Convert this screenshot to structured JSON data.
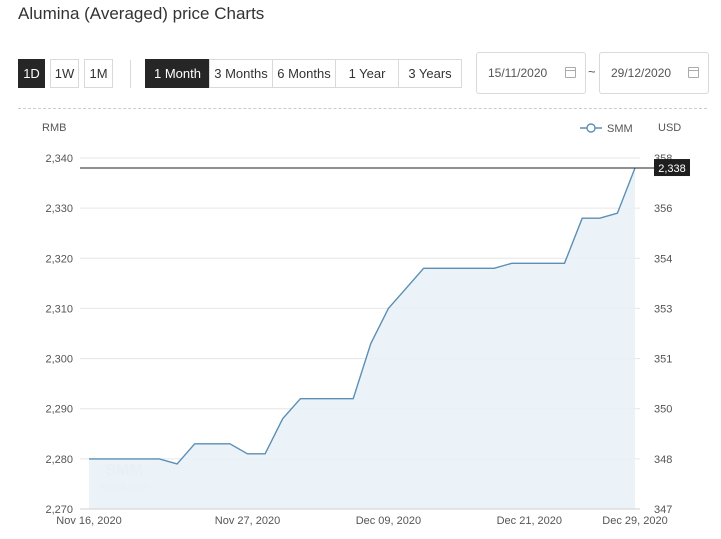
{
  "title": "Alumina (Averaged) price Charts",
  "interval_buttons": [
    {
      "label": "1D",
      "active": true
    },
    {
      "label": "1W",
      "active": false
    },
    {
      "label": "1M",
      "active": false
    }
  ],
  "range_buttons": [
    {
      "label": "1 Month",
      "active": true
    },
    {
      "label": "3 Months",
      "active": false
    },
    {
      "label": "6 Months",
      "active": false
    },
    {
      "label": "1 Year",
      "active": false
    },
    {
      "label": "3 Years",
      "active": false
    }
  ],
  "date_range": {
    "start": "15/11/2020",
    "separator": "~",
    "end": "29/12/2020"
  },
  "colors": {
    "line": "#5b8fb5",
    "area": "#e8f1f7",
    "active_button": "#262626"
  },
  "chart_data": {
    "type": "area",
    "left_axis_label": "RMB",
    "right_axis_label": "USD",
    "legend": {
      "label": "SMM",
      "position": "top-right"
    },
    "watermark": {
      "line1": "SMM",
      "line2": "metal.com"
    },
    "x_tick_labels": [
      "Nov 16, 2020",
      "Nov 27, 2020",
      "Dec 09, 2020",
      "Dec 21, 2020",
      "Dec 29, 2020"
    ],
    "y_left": {
      "min": 2270,
      "max": 2340,
      "ticks": [
        "2,270",
        "2,280",
        "2,290",
        "2,300",
        "2,310",
        "2,320",
        "2,330",
        "2,340"
      ]
    },
    "y_right": {
      "ticks": [
        "347",
        "348",
        "350",
        "351",
        "353",
        "354",
        "356",
        "358"
      ]
    },
    "grid": "horizontal",
    "last_value_label": "2,338",
    "reference_line": 2338,
    "series": [
      {
        "name": "SMM",
        "x": [
          "2020-11-16",
          "2020-11-17",
          "2020-11-18",
          "2020-11-19",
          "2020-11-20",
          "2020-11-23",
          "2020-11-24",
          "2020-11-25",
          "2020-11-26",
          "2020-11-27",
          "2020-11-30",
          "2020-12-01",
          "2020-12-02",
          "2020-12-03",
          "2020-12-04",
          "2020-12-07",
          "2020-12-08",
          "2020-12-09",
          "2020-12-10",
          "2020-12-11",
          "2020-12-14",
          "2020-12-15",
          "2020-12-16",
          "2020-12-17",
          "2020-12-18",
          "2020-12-21",
          "2020-12-22",
          "2020-12-23",
          "2020-12-24",
          "2020-12-25",
          "2020-12-28",
          "2020-12-29"
        ],
        "values": [
          2280,
          2280,
          2280,
          2280,
          2280,
          2279,
          2283,
          2283,
          2283,
          2281,
          2281,
          2288,
          2292,
          2292,
          2292,
          2292,
          2303,
          2310,
          2314,
          2318,
          2318,
          2318,
          2318,
          2318,
          2319,
          2319,
          2319,
          2319,
          2328,
          2328,
          2329,
          2338
        ]
      }
    ]
  }
}
